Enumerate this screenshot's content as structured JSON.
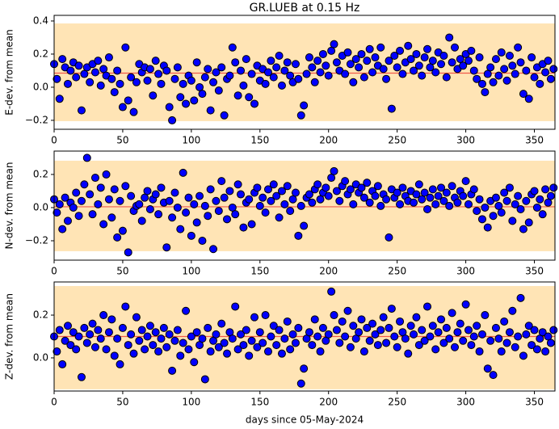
{
  "chart_data": [
    {
      "type": "scatter",
      "title": "GR.LUEB at 0.15 Hz",
      "ylabel": "E-dev. from mean",
      "x": [
        0,
        2,
        4,
        6,
        8,
        10,
        12,
        14,
        16,
        18,
        20,
        22,
        24,
        26,
        28,
        30,
        32,
        34,
        36,
        38,
        40,
        42,
        44,
        46,
        48,
        50,
        52,
        54,
        56,
        58,
        60,
        62,
        64,
        66,
        68,
        70,
        72,
        74,
        76,
        78,
        80,
        82,
        84,
        86,
        88,
        90,
        92,
        94,
        96,
        98,
        100,
        102,
        104,
        106,
        108,
        110,
        112,
        114,
        116,
        118,
        120,
        122,
        124,
        126,
        128,
        130,
        132,
        134,
        136,
        138,
        140,
        142,
        144,
        146,
        148,
        150,
        152,
        154,
        156,
        158,
        160,
        162,
        164,
        166,
        168,
        170,
        172,
        174,
        176,
        178,
        180,
        182,
        184,
        186,
        188,
        190,
        192,
        194,
        196,
        198,
        200,
        202,
        204,
        206,
        208,
        210,
        212,
        214,
        216,
        218,
        220,
        222,
        224,
        226,
        228,
        230,
        232,
        234,
        236,
        238,
        240,
        242,
        244,
        246,
        248,
        250,
        252,
        254,
        256,
        258,
        260,
        262,
        264,
        266,
        268,
        270,
        272,
        274,
        276,
        278,
        280,
        282,
        284,
        286,
        288,
        290,
        292,
        294,
        296,
        298,
        300,
        302,
        304,
        306,
        308,
        310,
        312,
        314,
        316,
        318,
        320,
        322,
        324,
        326,
        328,
        330,
        332,
        334,
        336,
        338,
        340,
        342,
        344,
        346,
        348,
        350,
        352,
        354,
        356,
        358,
        360,
        362,
        364
      ],
      "values": [
        0.14,
        0.05,
        -0.07,
        0.17,
        0.12,
        0.02,
        0.1,
        0.15,
        0.06,
        0.13,
        -0.14,
        0.08,
        0.12,
        0.03,
        0.14,
        0.09,
        0.16,
        0.01,
        0.11,
        0.07,
        0.18,
        0.05,
        -0.03,
        0.1,
        0.02,
        -0.12,
        0.24,
        -0.08,
        0.06,
        -0.15,
        0.03,
        0.14,
        0.09,
        0.12,
        0.04,
        0.11,
        -0.05,
        0.16,
        0.08,
        0.02,
        0.13,
        0.1,
        -0.12,
        -0.2,
        0.05,
        0.12,
        -0.06,
        0.02,
        -0.1,
        0.07,
        0.04,
        -0.08,
        0.15,
        0.0,
        -0.04,
        0.06,
        0.11,
        -0.14,
        0.03,
        0.09,
        -0.02,
        0.12,
        -0.17,
        0.05,
        0.07,
        0.24,
        0.15,
        -0.05,
        0.1,
        0.01,
        0.17,
        -0.06,
        0.08,
        -0.1,
        0.13,
        0.04,
        0.11,
        0.02,
        0.09,
        0.16,
        0.06,
        0.12,
        0.19,
        0.01,
        0.1,
        0.15,
        0.07,
        0.03,
        0.14,
        0.05,
        -0.17,
        -0.11,
        0.08,
        0.18,
        0.12,
        0.03,
        0.16,
        0.09,
        0.2,
        0.13,
        0.07,
        0.22,
        0.26,
        0.15,
        0.1,
        0.19,
        0.08,
        0.21,
        0.14,
        0.03,
        0.17,
        0.12,
        0.2,
        0.06,
        0.16,
        0.23,
        0.09,
        0.18,
        0.13,
        0.24,
        0.11,
        0.05,
        0.16,
        -0.13,
        0.19,
        0.12,
        0.22,
        0.08,
        0.15,
        0.25,
        0.17,
        0.1,
        0.2,
        0.13,
        0.07,
        0.18,
        0.23,
        0.12,
        0.16,
        0.09,
        0.21,
        0.14,
        0.19,
        0.06,
        0.3,
        0.15,
        0.24,
        0.11,
        0.17,
        0.13,
        0.2,
        0.16,
        0.22,
        0.1,
        0.05,
        0.18,
        0.02,
        -0.03,
        0.08,
        0.12,
        0.03,
        0.17,
        0.07,
        0.21,
        0.11,
        0.04,
        0.19,
        0.13,
        0.08,
        0.24,
        0.15,
        -0.04,
        0.1,
        -0.07,
        0.18,
        0.06,
        0.12,
        0.02,
        0.14,
        0.09,
        0.16,
        0.05,
        0.11
      ],
      "color": "#0000ff",
      "edgecolor": "#000000",
      "mean": 0.085,
      "mean_color": "#f05a4a",
      "band": [
        -0.205,
        0.385
      ],
      "band_color": "#ffe4b5",
      "xlim": [
        0,
        365
      ],
      "xticks": [
        0,
        50,
        100,
        150,
        200,
        250,
        300,
        350
      ],
      "ylim": [
        -0.254,
        0.434
      ],
      "yticks": [
        {
          "value": -0.2,
          "label": "−0.2"
        },
        {
          "value": 0,
          "label": "0.0"
        },
        0.2,
        0.4
      ]
    },
    {
      "type": "scatter",
      "ylabel": "N-dev. from mean",
      "x": [
        0,
        2,
        4,
        6,
        8,
        10,
        12,
        14,
        16,
        18,
        20,
        22,
        24,
        26,
        28,
        30,
        32,
        34,
        36,
        38,
        40,
        42,
        44,
        46,
        48,
        50,
        52,
        54,
        56,
        58,
        60,
        62,
        64,
        66,
        68,
        70,
        72,
        74,
        76,
        78,
        80,
        82,
        84,
        86,
        88,
        90,
        92,
        94,
        96,
        98,
        100,
        102,
        104,
        106,
        108,
        110,
        112,
        114,
        116,
        118,
        120,
        122,
        124,
        126,
        128,
        130,
        132,
        134,
        136,
        138,
        140,
        142,
        144,
        146,
        148,
        150,
        152,
        154,
        156,
        158,
        160,
        162,
        164,
        166,
        168,
        170,
        172,
        174,
        176,
        178,
        180,
        182,
        184,
        186,
        188,
        190,
        192,
        194,
        196,
        198,
        200,
        202,
        204,
        206,
        208,
        210,
        212,
        214,
        216,
        218,
        220,
        222,
        224,
        226,
        228,
        230,
        232,
        234,
        236,
        238,
        240,
        242,
        244,
        246,
        248,
        250,
        252,
        254,
        256,
        258,
        260,
        262,
        264,
        266,
        268,
        270,
        272,
        274,
        276,
        278,
        280,
        282,
        284,
        286,
        288,
        290,
        292,
        294,
        296,
        298,
        300,
        302,
        304,
        306,
        308,
        310,
        312,
        314,
        316,
        318,
        320,
        322,
        324,
        326,
        328,
        330,
        332,
        334,
        336,
        338,
        340,
        342,
        344,
        346,
        348,
        350,
        352,
        354,
        356,
        358,
        360,
        362,
        364
      ],
      "values": [
        0.05,
        -0.03,
        0.02,
        -0.13,
        0.06,
        -0.08,
        0.03,
        0.0,
        0.09,
        -0.05,
        0.04,
        0.14,
        0.3,
        0.08,
        -0.04,
        0.18,
        0.02,
        0.12,
        -0.1,
        0.2,
        0.05,
        -0.06,
        0.11,
        -0.18,
        0.04,
        -0.14,
        0.13,
        -0.27,
        0.07,
        -0.02,
        0.01,
        0.02,
        -0.08,
        0.06,
        0.1,
        -0.01,
        0.05,
        0.08,
        -0.04,
        0.12,
        0.03,
        -0.24,
        0.04,
        -0.06,
        0.09,
        0.0,
        -0.13,
        0.21,
        -0.03,
        0.06,
        -0.17,
        0.02,
        -0.09,
        0.07,
        -0.2,
        0.01,
        -0.05,
        0.11,
        -0.25,
        0.04,
        -0.02,
        0.16,
        0.06,
        -0.07,
        0.1,
        0.0,
        -0.04,
        0.14,
        0.08,
        -0.12,
        0.03,
        0.05,
        -0.1,
        0.09,
        0.12,
        0.01,
        0.06,
        -0.03,
        0.11,
        0.04,
        0.14,
        0.07,
        -0.06,
        0.1,
        0.02,
        0.13,
        -0.02,
        0.05,
        0.09,
        -0.17,
        0.01,
        -0.11,
        0.06,
        0.08,
        0.03,
        0.11,
        0.14,
        0.05,
        0.09,
        0.12,
        0.07,
        0.18,
        0.22,
        0.1,
        0.04,
        0.13,
        0.16,
        0.08,
        0.11,
        0.02,
        0.14,
        0.09,
        0.12,
        0.06,
        0.15,
        0.03,
        0.1,
        0.07,
        0.13,
        0.01,
        0.08,
        0.05,
        -0.18,
        0.11,
        0.06,
        0.09,
        0.02,
        0.12,
        0.07,
        0.04,
        0.1,
        0.03,
        0.08,
        0.14,
        0.05,
        0.09,
        -0.01,
        0.06,
        0.11,
        0.02,
        0.07,
        0.12,
        0.04,
        0.09,
        0.01,
        0.13,
        0.06,
        0.03,
        0.1,
        0.07,
        0.16,
        0.02,
        0.08,
        0.11,
        -0.02,
        0.05,
        -0.07,
        0.0,
        -0.12,
        0.04,
        -0.05,
        0.06,
        0.01,
        -0.03,
        0.09,
        0.04,
        0.12,
        -0.08,
        0.02,
        0.07,
        -0.01,
        -0.13,
        0.04,
        -0.09,
        0.08,
        0.1,
        0.0,
        0.05,
        -0.04,
        0.11,
        0.03,
        0.07,
        0.12
      ],
      "color": "#0000ff",
      "edgecolor": "#000000",
      "mean": 0.005,
      "mean_color": "#f05a4a",
      "band": [
        -0.263,
        0.283
      ],
      "band_color": "#ffe4b5",
      "xlim": [
        0,
        365
      ],
      "xticks": [
        0,
        50,
        100,
        150,
        200,
        250,
        300,
        350
      ],
      "ylim": [
        -0.317,
        0.341
      ],
      "yticks": [
        {
          "value": -0.2,
          "label": "−0.2"
        },
        {
          "value": 0,
          "label": "0.0"
        },
        0.2
      ]
    },
    {
      "type": "scatter",
      "ylabel": "Z-dev. from mean",
      "xlabel": "days since 05-May-2024",
      "x": [
        0,
        2,
        4,
        6,
        8,
        10,
        12,
        14,
        16,
        18,
        20,
        22,
        24,
        26,
        28,
        30,
        32,
        34,
        36,
        38,
        40,
        42,
        44,
        46,
        48,
        50,
        52,
        54,
        56,
        58,
        60,
        62,
        64,
        66,
        68,
        70,
        72,
        74,
        76,
        78,
        80,
        82,
        84,
        86,
        88,
        90,
        92,
        94,
        96,
        98,
        100,
        102,
        104,
        106,
        108,
        110,
        112,
        114,
        116,
        118,
        120,
        122,
        124,
        126,
        128,
        130,
        132,
        134,
        136,
        138,
        140,
        142,
        144,
        146,
        148,
        150,
        152,
        154,
        156,
        158,
        160,
        162,
        164,
        166,
        168,
        170,
        172,
        174,
        176,
        178,
        180,
        182,
        184,
        186,
        188,
        190,
        192,
        194,
        196,
        198,
        200,
        202,
        204,
        206,
        208,
        210,
        212,
        214,
        216,
        218,
        220,
        222,
        224,
        226,
        228,
        230,
        232,
        234,
        236,
        238,
        240,
        242,
        244,
        246,
        248,
        250,
        252,
        254,
        256,
        258,
        260,
        262,
        264,
        266,
        268,
        270,
        272,
        274,
        276,
        278,
        280,
        282,
        284,
        286,
        288,
        290,
        292,
        294,
        296,
        298,
        300,
        302,
        304,
        306,
        308,
        310,
        312,
        314,
        316,
        318,
        320,
        322,
        324,
        326,
        328,
        330,
        332,
        334,
        336,
        338,
        340,
        342,
        344,
        346,
        348,
        350,
        352,
        354,
        356,
        358,
        360,
        362,
        364
      ],
      "values": [
        0.1,
        0.03,
        0.13,
        -0.03,
        0.08,
        0.15,
        0.06,
        0.12,
        0.04,
        0.1,
        -0.09,
        0.14,
        0.07,
        0.11,
        0.16,
        0.05,
        0.13,
        0.09,
        0.2,
        0.04,
        0.12,
        0.18,
        0.01,
        0.09,
        -0.03,
        0.14,
        0.24,
        0.06,
        0.11,
        0.02,
        0.19,
        0.08,
        0.13,
        0.04,
        0.1,
        0.15,
        0.06,
        0.12,
        0.03,
        0.09,
        0.14,
        0.05,
        0.11,
        -0.06,
        0.08,
        0.13,
        0.01,
        0.07,
        0.22,
        0.04,
        0.1,
        -0.02,
        0.12,
        0.06,
        0.09,
        -0.1,
        0.14,
        0.03,
        0.08,
        0.11,
        0.05,
        0.16,
        0.07,
        0.02,
        0.12,
        0.09,
        0.24,
        0.04,
        0.11,
        0.06,
        0.13,
        0.01,
        0.08,
        0.19,
        0.05,
        0.12,
        0.07,
        0.2,
        0.03,
        0.1,
        0.15,
        0.06,
        0.13,
        0.02,
        0.09,
        0.17,
        0.04,
        0.11,
        0.07,
        0.14,
        -0.12,
        -0.05,
        0.09,
        0.12,
        0.06,
        0.18,
        0.1,
        0.03,
        0.14,
        0.08,
        0.11,
        0.31,
        0.2,
        0.13,
        0.07,
        0.17,
        0.1,
        0.22,
        0.05,
        0.15,
        0.09,
        0.12,
        0.18,
        0.03,
        0.14,
        0.08,
        0.16,
        0.11,
        0.06,
        0.13,
        0.19,
        0.07,
        0.14,
        0.23,
        0.1,
        0.05,
        0.17,
        0.12,
        0.09,
        0.02,
        0.15,
        0.11,
        0.19,
        0.06,
        0.13,
        0.08,
        0.24,
        0.1,
        0.15,
        0.04,
        0.12,
        0.18,
        0.07,
        0.14,
        0.09,
        0.21,
        0.05,
        0.12,
        0.16,
        0.08,
        0.25,
        0.13,
        0.06,
        0.1,
        0.15,
        0.03,
        0.11,
        0.2,
        -0.05,
        0.08,
        -0.08,
        0.14,
        0.09,
        0.03,
        0.17,
        0.07,
        0.12,
        0.22,
        0.05,
        0.1,
        0.28,
        0.01,
        0.11,
        0.15,
        0.06,
        0.13,
        0.04,
        0.09,
        0.12,
        0.03,
        0.1,
        0.07,
        0.13
      ],
      "color": "#0000ff",
      "edgecolor": "#000000",
      "mean": 0.1,
      "mean_color": "#f05a4a",
      "band": [
        -0.147,
        0.336
      ],
      "band_color": "#ffe4b5",
      "xlim": [
        0,
        365
      ],
      "xticks": [
        0,
        50,
        100,
        150,
        200,
        250,
        300,
        350
      ],
      "ylim": [
        -0.155,
        0.355
      ],
      "yticks": [
        {
          "value": 0,
          "label": "0.0"
        },
        0.2
      ]
    }
  ]
}
